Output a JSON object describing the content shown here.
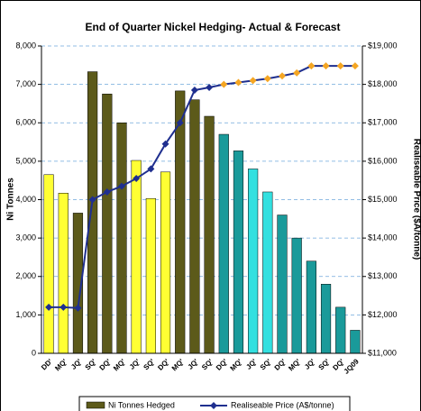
{
  "chart_data": {
    "type": "bar_line",
    "title": "End of Quarter Nickel Hedging- Actual & Forecast",
    "ylabel": "Ni Tonnes",
    "y2label": "Realiseable Price ($A/tonne)",
    "categories": [
      "DD'",
      "MQ'",
      "JQ'",
      "SQ'",
      "DQ'",
      "MQ'",
      "JQ'",
      "SQ'",
      "DQ'",
      "MQ'",
      "JQ'",
      "SQ'",
      "DQ'",
      "MQ'",
      "JQ'",
      "SQ'",
      "DQ'",
      "MQ'",
      "JQ'",
      "SQ'",
      "DQ'",
      "JQ09"
    ],
    "series": [
      {
        "name": "Ni Tonnes Hedged",
        "color": "#5c5a1a",
        "colors": [
          "#ffff33",
          "#ffff33",
          "#5c5a1a",
          "#5c5a1a",
          "#5c5a1a",
          "#5c5a1a",
          "#ffff33",
          "#ffff33",
          "#ffff33",
          "#5c5a1a",
          "#5c5a1a",
          "#5c5a1a",
          "#1a9a9a",
          "#1a9a9a",
          "#33e0e0",
          "#33e0e0",
          "#1a9a9a",
          "#1a9a9a",
          "#1a9a9a",
          "#1a9a9a",
          "#1a9a9a",
          "#1a9a9a"
        ],
        "values": [
          4650,
          4170,
          3650,
          7330,
          6750,
          6000,
          5020,
          4030,
          4720,
          6830,
          6600,
          6170,
          5700,
          5270,
          4800,
          4200,
          3600,
          3000,
          2400,
          1800,
          1200,
          600
        ]
      },
      {
        "name": "Realiseable Price (A$/tonne)",
        "color": "#1f2f8f",
        "axis": "y2",
        "marker_colors": [
          "#1f2f8f",
          "#1f2f8f",
          "#1f2f8f",
          "#1f2f8f",
          "#1f2f8f",
          "#1f2f8f",
          "#1f2f8f",
          "#1f2f8f",
          "#1f2f8f",
          "#1f2f8f",
          "#1f2f8f",
          "#1f2f8f",
          "#f5a623",
          "#f5a623",
          "#f5a623",
          "#f5a623",
          "#f5a623",
          "#f5a623",
          "#f5a623",
          "#f5a623",
          "#f5a623",
          "#f5a623"
        ],
        "values": [
          12200,
          12200,
          12180,
          15000,
          15200,
          15350,
          15550,
          15800,
          16450,
          17000,
          17850,
          17920,
          18000,
          18050,
          18100,
          18150,
          18220,
          18300,
          18480,
          18480,
          18480,
          18480
        ]
      }
    ],
    "ylim": [
      0,
      8000
    ],
    "yticks": [
      0,
      {
        "value": 1000,
        "label": "1,000"
      },
      {
        "value": 2000,
        "label": "2,000"
      },
      {
        "value": 3000,
        "label": "3,000"
      },
      {
        "value": 4000,
        "label": "4,000"
      },
      {
        "value": 5000,
        "label": "5,000"
      },
      {
        "value": 6000,
        "label": "6,000"
      },
      {
        "value": 7000,
        "label": "7,000"
      },
      {
        "value": 8000,
        "label": "8,000"
      }
    ],
    "y2lim": [
      11000,
      19000
    ],
    "y2ticks": [
      {
        "value": 11000,
        "label": "$11,000"
      },
      {
        "value": 12000,
        "label": "$12,000"
      },
      {
        "value": 13000,
        "label": "$13,000"
      },
      {
        "value": 14000,
        "label": "$14,000"
      },
      {
        "value": 15000,
        "label": "$15,000"
      },
      {
        "value": 16000,
        "label": "$16,000"
      },
      {
        "value": 17000,
        "label": "$17,000"
      },
      {
        "value": 18000,
        "label": "$18,000"
      },
      {
        "value": 19000,
        "label": "$19,000"
      }
    ],
    "grid": true,
    "legend": "bottom"
  }
}
